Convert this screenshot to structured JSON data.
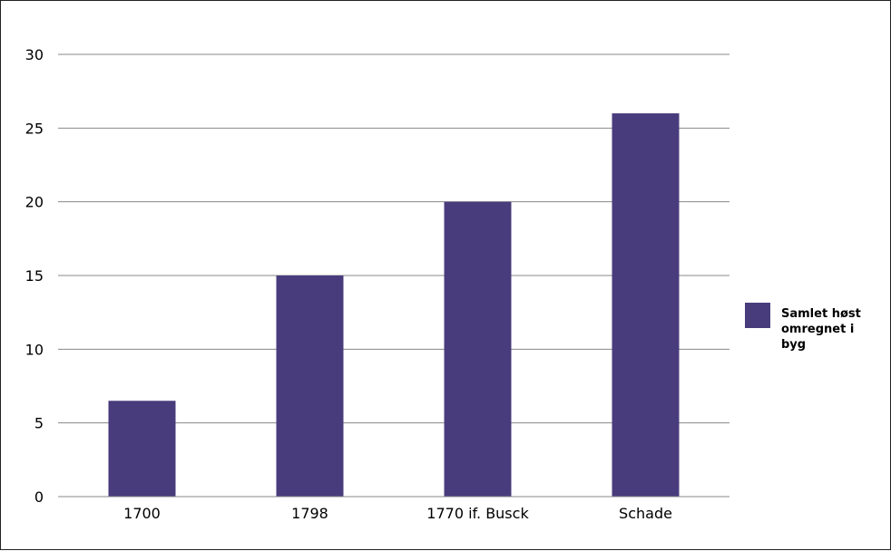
{
  "chart_data": {
    "type": "bar",
    "categories": [
      "1700",
      "1798",
      "1770 if. Busck",
      "Schade"
    ],
    "series": [
      {
        "name": "Samlet høst omregnet i byg",
        "values": [
          6.5,
          15,
          20,
          26
        ],
        "color": "#493C7C"
      }
    ],
    "title": "",
    "xlabel": "",
    "ylabel": "",
    "ylim": [
      0,
      30
    ],
    "yticks": [
      0,
      5,
      10,
      15,
      20,
      25,
      30
    ],
    "grid": "horizontal",
    "legend_position": "right"
  }
}
